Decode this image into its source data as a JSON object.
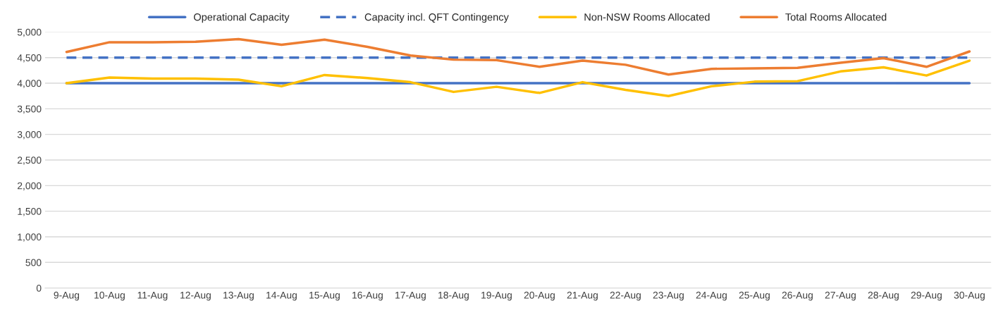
{
  "chart_data": {
    "type": "line",
    "categories": [
      "9-Aug",
      "10-Aug",
      "11-Aug",
      "12-Aug",
      "13-Aug",
      "14-Aug",
      "15-Aug",
      "16-Aug",
      "17-Aug",
      "18-Aug",
      "19-Aug",
      "20-Aug",
      "21-Aug",
      "22-Aug",
      "23-Aug",
      "24-Aug",
      "25-Aug",
      "26-Aug",
      "27-Aug",
      "28-Aug",
      "29-Aug",
      "30-Aug"
    ],
    "series": [
      {
        "name": "Operational Capacity",
        "color": "#4472c4",
        "line_style": "solid",
        "values": [
          4000,
          4000,
          4000,
          4000,
          4000,
          4000,
          4000,
          4000,
          4000,
          4000,
          4000,
          4000,
          4000,
          4000,
          4000,
          4000,
          4000,
          4000,
          4000,
          4000,
          4000,
          4000
        ]
      },
      {
        "name": "Capacity incl. QFT Contingency",
        "color": "#4472c4",
        "line_style": "dashed",
        "values": [
          4500,
          4500,
          4500,
          4500,
          4500,
          4500,
          4500,
          4500,
          4500,
          4500,
          4500,
          4500,
          4500,
          4500,
          4500,
          4500,
          4500,
          4500,
          4500,
          4500,
          4500,
          4500
        ]
      },
      {
        "name": "Non-NSW Rooms Allocated",
        "color": "#ffc000",
        "line_style": "solid",
        "values": [
          4000,
          4110,
          4090,
          4090,
          4070,
          3940,
          4160,
          4100,
          4020,
          3830,
          3930,
          3810,
          4020,
          3870,
          3750,
          3940,
          4030,
          4040,
          4230,
          4310,
          4150,
          4440
        ]
      },
      {
        "name": "Total Rooms Allocated",
        "color": "#ed7d31",
        "line_style": "solid",
        "values": [
          4610,
          4800,
          4800,
          4810,
          4860,
          4750,
          4850,
          4710,
          4540,
          4460,
          4450,
          4320,
          4440,
          4360,
          4170,
          4280,
          4290,
          4300,
          4400,
          4490,
          4320,
          4620
        ]
      }
    ],
    "ylim": [
      0,
      5000
    ],
    "yticks": [
      {
        "value": 0,
        "label": "0"
      },
      {
        "value": 500,
        "label": "500"
      },
      {
        "value": 1000,
        "label": "1,000"
      },
      {
        "value": 1500,
        "label": "1,500"
      },
      {
        "value": 2000,
        "label": "2,000"
      },
      {
        "value": 2500,
        "label": "2,500"
      },
      {
        "value": 3000,
        "label": "3,000"
      },
      {
        "value": 3500,
        "label": "3,500"
      },
      {
        "value": 4000,
        "label": "4,000"
      },
      {
        "value": 4500,
        "label": "4,500"
      },
      {
        "value": 5000,
        "label": "5,000"
      }
    ],
    "grid": "y",
    "legend": "top",
    "marker": "none"
  }
}
